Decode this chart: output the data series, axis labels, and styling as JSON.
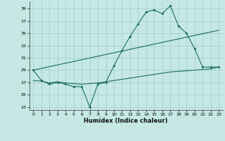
{
  "xlabel": "Humidex (Indice chaleur)",
  "bg_color": "#c5e8e5",
  "grid_color": "#a8d0cc",
  "line_color": "#1a6b60",
  "xlim": [
    -0.5,
    23.5
  ],
  "ylim": [
    22.5,
    40.2
  ],
  "xticks": [
    0,
    1,
    2,
    3,
    4,
    5,
    6,
    7,
    8,
    9,
    10,
    11,
    12,
    13,
    14,
    15,
    16,
    17,
    18,
    19,
    20,
    21,
    22,
    23
  ],
  "yticks": [
    23,
    25,
    27,
    29,
    31,
    33,
    35,
    37,
    39
  ],
  "line1_x": [
    0,
    1,
    2,
    3,
    4,
    5,
    6,
    7,
    8,
    9,
    10,
    11,
    12,
    13,
    14,
    15,
    16,
    17,
    18,
    19,
    20,
    21,
    22,
    23
  ],
  "line1_y": [
    29,
    27.3,
    26.7,
    27,
    26.7,
    26.3,
    26.3,
    23,
    26.7,
    27,
    29.7,
    32.2,
    34.5,
    36.5,
    38.5,
    38.8,
    38.2,
    39.5,
    36.2,
    35.0,
    32.5,
    29.5,
    29.5,
    29.5
  ],
  "line2_x": [
    0,
    23
  ],
  "line2_y": [
    29,
    35.5
  ],
  "line3_x": [
    0,
    1,
    2,
    3,
    4,
    5,
    6,
    7,
    8,
    9,
    10,
    11,
    12,
    13,
    14,
    15,
    16,
    17,
    18,
    19,
    20,
    21,
    22,
    23
  ],
  "line3_y": [
    27.3,
    27.2,
    26.9,
    27.1,
    26.9,
    26.8,
    26.7,
    26.8,
    26.9,
    27.1,
    27.3,
    27.5,
    27.7,
    27.9,
    28.1,
    28.3,
    28.5,
    28.7,
    28.8,
    28.9,
    29.0,
    29.1,
    29.2,
    29.5
  ],
  "xlabel_fontsize": 6,
  "tick_fontsize": 4.5,
  "marker": "D",
  "markersize": 2.0
}
